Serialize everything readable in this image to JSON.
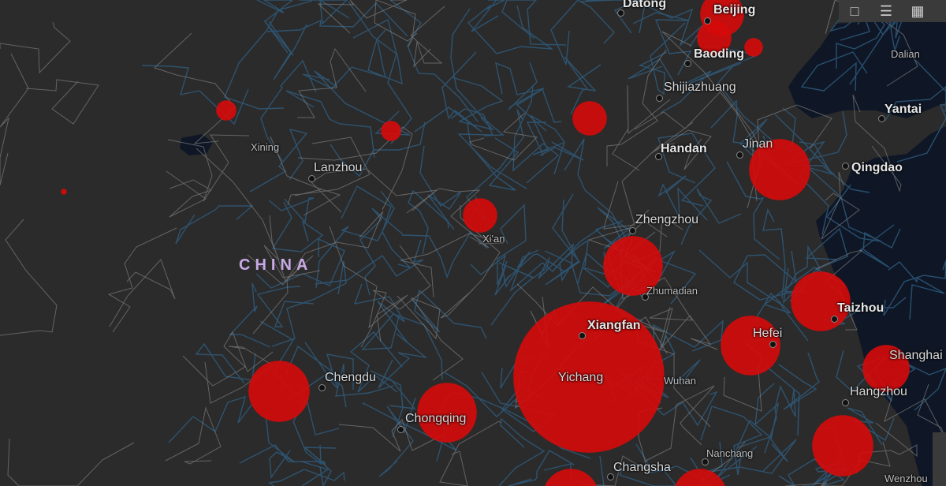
{
  "map": {
    "country_label": "CHINA",
    "cities": [
      {
        "name": "Datong",
        "style": "bold"
      },
      {
        "name": "Beijing",
        "style": "bold"
      },
      {
        "name": "Baoding",
        "style": "bold"
      },
      {
        "name": "Dalian",
        "style": "small"
      },
      {
        "name": "Shijiazhuang",
        "style": "normal"
      },
      {
        "name": "Yantai",
        "style": "bold"
      },
      {
        "name": "Xining",
        "style": "small"
      },
      {
        "name": "Lanzhou",
        "style": "normal"
      },
      {
        "name": "Handan",
        "style": "bold"
      },
      {
        "name": "Jinan",
        "style": "normal"
      },
      {
        "name": "Qingdao",
        "style": "bold"
      },
      {
        "name": "Zhengzhou",
        "style": "normal"
      },
      {
        "name": "Xi'an",
        "style": "small"
      },
      {
        "name": "Zhumadian",
        "style": "small"
      },
      {
        "name": "Taizhou",
        "style": "bold"
      },
      {
        "name": "Xiangfan",
        "style": "bold"
      },
      {
        "name": "Hefei",
        "style": "normal"
      },
      {
        "name": "Shanghai",
        "style": "normal"
      },
      {
        "name": "Chengdu",
        "style": "normal"
      },
      {
        "name": "Yichang",
        "style": "normal"
      },
      {
        "name": "Wuhan",
        "style": "small"
      },
      {
        "name": "Hangzhou",
        "style": "normal"
      },
      {
        "name": "Chongqing",
        "style": "normal"
      },
      {
        "name": "Changsha",
        "style": "normal"
      },
      {
        "name": "Nanchang",
        "style": "small"
      },
      {
        "name": "Wenzhou",
        "style": "small"
      }
    ],
    "bubble_color": "#d60a0a",
    "land_color": "#2b2b2b",
    "sea_color": "#0f1726",
    "road_color": "#2f5d80"
  },
  "toolbar": {
    "icons": [
      "bookmark-icon",
      "list-icon",
      "grid-icon"
    ]
  }
}
